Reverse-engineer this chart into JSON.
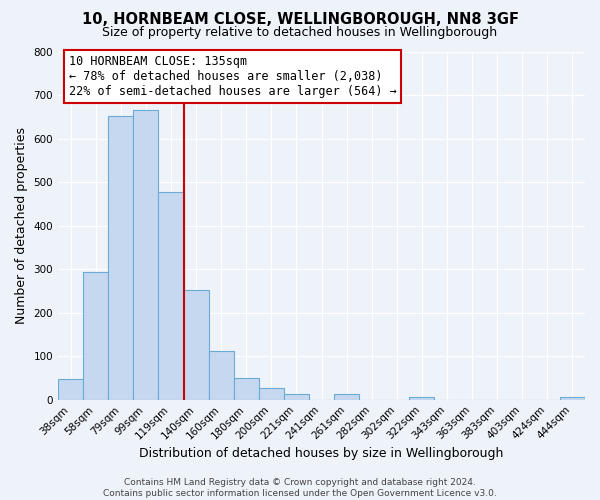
{
  "title": "10, HORNBEAM CLOSE, WELLINGBOROUGH, NN8 3GF",
  "subtitle": "Size of property relative to detached houses in Wellingborough",
  "xlabel": "Distribution of detached houses by size in Wellingborough",
  "ylabel": "Number of detached properties",
  "bar_labels": [
    "38sqm",
    "58sqm",
    "79sqm",
    "99sqm",
    "119sqm",
    "140sqm",
    "160sqm",
    "180sqm",
    "200sqm",
    "221sqm",
    "241sqm",
    "261sqm",
    "282sqm",
    "302sqm",
    "322sqm",
    "343sqm",
    "363sqm",
    "383sqm",
    "403sqm",
    "424sqm",
    "444sqm"
  ],
  "bar_heights": [
    47,
    293,
    651,
    665,
    478,
    253,
    113,
    49,
    28,
    14,
    0,
    13,
    0,
    0,
    7,
    0,
    0,
    0,
    0,
    0,
    7
  ],
  "bar_color": "#c5d8f0",
  "bar_edge_color": "#6aaad4",
  "vline_color": "#cc0000",
  "ylim": [
    0,
    800
  ],
  "yticks": [
    0,
    100,
    200,
    300,
    400,
    500,
    600,
    700,
    800
  ],
  "annotation_title": "10 HORNBEAM CLOSE: 135sqm",
  "annotation_line1": "← 78% of detached houses are smaller (2,038)",
  "annotation_line2": "22% of semi-detached houses are larger (564) →",
  "annotation_box_color": "white",
  "annotation_box_edge_color": "#cc0000",
  "footer_line1": "Contains HM Land Registry data © Crown copyright and database right 2024.",
  "footer_line2": "Contains public sector information licensed under the Open Government Licence v3.0.",
  "bg_color": "#eef2f9",
  "title_fontsize": 10.5,
  "subtitle_fontsize": 9,
  "axis_label_fontsize": 9,
  "tick_fontsize": 7.5,
  "footer_fontsize": 6.5,
  "annotation_fontsize": 8.5
}
